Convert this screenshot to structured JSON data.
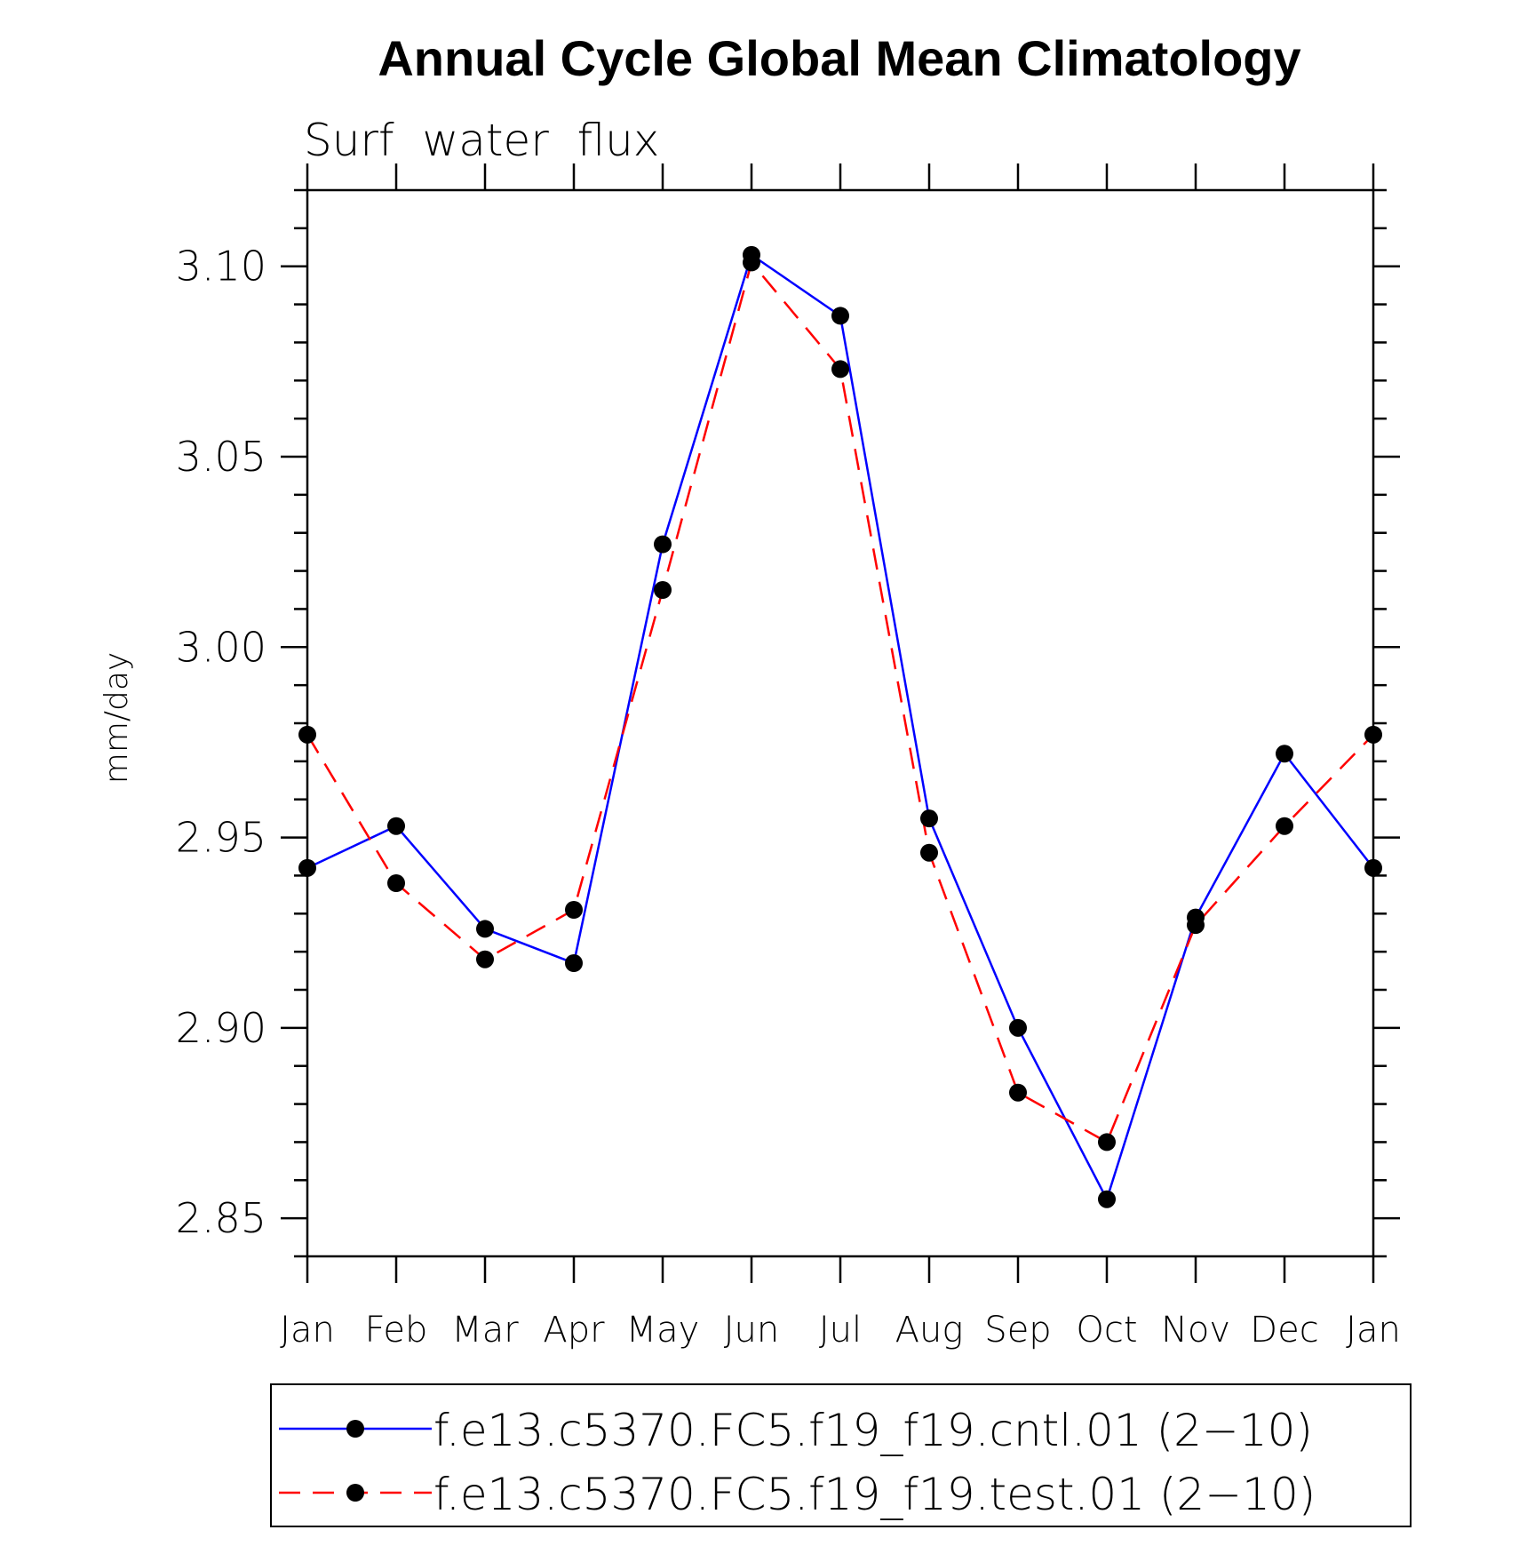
{
  "chart_data": {
    "type": "line",
    "title": "Annual Cycle Global Mean Climatology",
    "subtitle": "Surf  water  flux",
    "xlabel": "",
    "ylabel": "mm/day",
    "categories": [
      "Jan",
      "Feb",
      "Mar",
      "Apr",
      "May",
      "Jun",
      "Jul",
      "Aug",
      "Sep",
      "Oct",
      "Nov",
      "Dec",
      "Jan"
    ],
    "ylim": [
      2.84,
      3.12
    ],
    "yticks": [
      2.85,
      2.9,
      2.95,
      3.0,
      3.05,
      3.1
    ],
    "ytick_labels": [
      "2.85",
      "2.90",
      "2.95",
      "3.00",
      "3.05",
      "3.10"
    ],
    "y_minor_step": 0.01,
    "grid": false,
    "legend_position": "bottom",
    "series": [
      {
        "name": "f.e13.c5370.FC5.f19_f19.cntl.01 (2−10)",
        "color": "#0000ff",
        "dash": "solid",
        "marker": "filled-circle",
        "values": [
          2.942,
          2.953,
          2.926,
          2.917,
          3.027,
          3.103,
          3.087,
          2.955,
          2.9,
          2.855,
          2.929,
          2.972,
          2.942
        ]
      },
      {
        "name": "f.e13.c5370.FC5.f19_f19.test.01 (2−10)",
        "color": "#ff0000",
        "dash": "dashed",
        "marker": "filled-circle",
        "values": [
          2.977,
          2.938,
          2.918,
          2.931,
          3.015,
          3.101,
          3.073,
          2.946,
          2.883,
          2.87,
          2.927,
          2.953,
          2.977
        ]
      }
    ]
  }
}
